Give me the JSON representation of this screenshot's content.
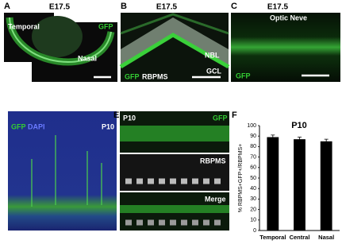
{
  "panel_a": {
    "letter": "A",
    "title": "E17.5",
    "labels": [
      "Temporal",
      "GFP",
      "Nasal"
    ]
  },
  "panel_b": {
    "letter": "B",
    "title": "E17.5",
    "labels": [
      "NBL",
      "GCL",
      "GFP",
      "RBPMS"
    ]
  },
  "panel_c": {
    "letter": "C",
    "title": "E17.5",
    "labels": [
      "Optic Neve",
      "GFP"
    ]
  },
  "panel_d": {
    "letter": "D",
    "labels": [
      "GFP",
      "DAPI",
      "P10"
    ]
  },
  "panel_e": {
    "letter": "E",
    "labels": [
      "P10",
      "GFP",
      "RBPMS",
      "Merge"
    ]
  },
  "panel_f": {
    "letter": "F"
  },
  "chart_data": {
    "type": "bar",
    "title": "P10",
    "y_label": "% RBPMS+GFP+/RBPMS+",
    "categories": [
      "Temporal",
      "Central",
      "Nasal"
    ],
    "values": [
      89,
      87,
      85
    ],
    "errors": [
      2,
      2,
      2
    ],
    "color": "#000000",
    "ylim": [
      0,
      100
    ],
    "yticks": [
      0,
      10,
      20,
      30,
      40,
      50,
      60,
      70,
      80,
      90,
      100
    ]
  }
}
